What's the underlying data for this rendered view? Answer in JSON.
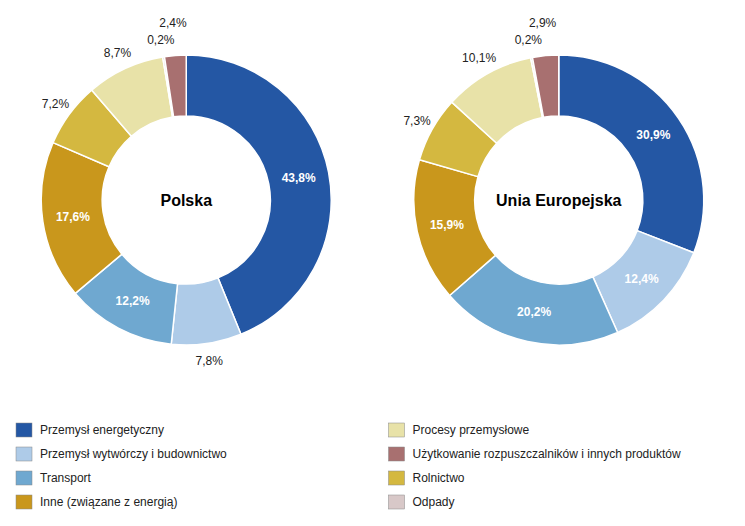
{
  "chart_data": [
    {
      "type": "pie",
      "title": "Polska",
      "values": [
        43.8,
        7.8,
        12.2,
        17.6,
        7.2,
        8.7,
        0.2,
        2.4
      ],
      "value_labels": [
        "43,8%",
        "7,8%",
        "12,2%",
        "17,6%",
        "7,2%",
        "8,7%",
        "0,2%",
        "2,4%"
      ],
      "colors": [
        "#2457A4",
        "#AECBE8",
        "#6FA8D0",
        "#C9971C",
        "#D4B840",
        "#E8E2A8",
        "#C0C0B8",
        "#A87070"
      ],
      "data_labels": true,
      "legend": "lower left",
      "series": [
        {
          "name": "Przemysł energetyczny",
          "color": "#2457A4"
        },
        {
          "name": "Przemysł wytwórczy i budownictwo",
          "color": "#AECBE8"
        },
        {
          "name": "Transport",
          "color": "#6FA8D0"
        },
        {
          "name": "Inne (związane z energią)",
          "color": "#C9971C"
        }
      ]
    },
    {
      "type": "pie",
      "title": "Unia Europejska",
      "values": [
        30.9,
        12.4,
        20.2,
        15.9,
        7.3,
        10.1,
        0.2,
        2.9
      ],
      "value_labels": [
        "30,9%",
        "12,4%",
        "20,2%",
        "15,9%",
        "7,3%",
        "10,1%",
        "0,2%",
        "2,9%"
      ],
      "colors": [
        "#2457A4",
        "#AECBE8",
        "#6FA8D0",
        "#C9971C",
        "#D4B840",
        "#E8E2A8",
        "#C0C0B8",
        "#A87070"
      ],
      "data_labels": true,
      "legend": "lower left",
      "series": [
        {
          "name": "Procesy przemysłowe",
          "color": "#E8E2A8"
        },
        {
          "name": "Użytkowanie rozpuszczalników i innych produktów",
          "color": "#A87070"
        },
        {
          "name": "Rolnictwo",
          "color": "#D4B840"
        },
        {
          "name": "Odpady",
          "color": "#D8C8C8"
        }
      ]
    }
  ]
}
